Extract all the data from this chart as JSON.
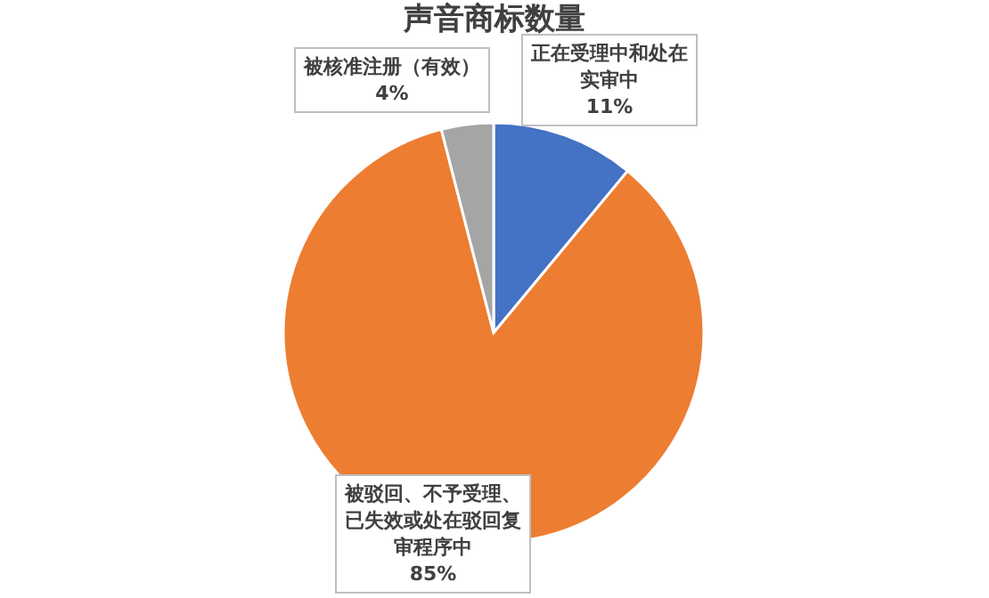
{
  "chart_data": {
    "type": "pie",
    "title": "声音商标数量",
    "categories": [
      "正在受理中和处在实审中",
      "被驳回、不予受理、已失效或处在驳回复审程序中",
      "被核准注册（有效）"
    ],
    "values": [
      11,
      85,
      4
    ],
    "colors": [
      "#4472c4",
      "#ed7d31",
      "#a5a5a5"
    ],
    "value_labels": [
      "11%",
      "85%",
      "4%"
    ],
    "legend": false
  }
}
